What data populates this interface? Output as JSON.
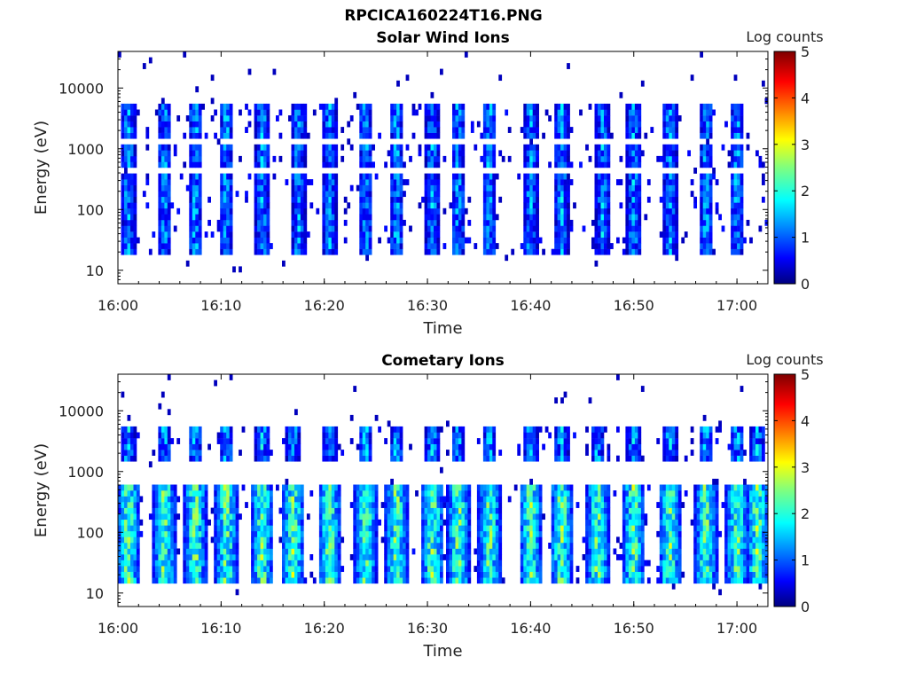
{
  "figure_title": "RPCICA160224T16.PNG",
  "colorbar": {
    "label": "Log counts",
    "ticks": [
      "0",
      "1",
      "2",
      "3",
      "4",
      "5"
    ],
    "range": [
      0,
      5
    ],
    "colormap": "jet"
  },
  "chart_data": [
    {
      "type": "heatmap",
      "title": "Solar Wind Ions",
      "xlabel": "Time",
      "ylabel": "Energy (eV)",
      "x_ticks": [
        "16:00",
        "16:10",
        "16:20",
        "16:30",
        "16:40",
        "16:50",
        "17:00"
      ],
      "y_ticks": [
        "10",
        "100",
        "1000",
        "10000"
      ],
      "y_scale": "log",
      "ylim": [
        6,
        40000
      ],
      "xlim": [
        "16:00",
        "17:03"
      ],
      "z_label": "Log counts",
      "zlim": [
        0,
        5
      ],
      "bursts_high_energy_center_times": [
        "16:01",
        "16:04.5",
        "16:07.5",
        "16:10.5",
        "16:14",
        "16:17.5",
        "16:20.5",
        "16:24",
        "16:27",
        "16:30.5",
        "16:33",
        "16:36",
        "16:40",
        "16:43",
        "16:47",
        "16:50",
        "16:53.5",
        "16:57",
        "17:00"
      ],
      "bands_eV": [
        [
          1500,
          5000
        ],
        [
          500,
          1200
        ],
        [
          20,
          400
        ]
      ],
      "max_log_counts": 3.0
    },
    {
      "type": "heatmap",
      "title": "Cometary Ions",
      "xlabel": "Time",
      "ylabel": "Energy (eV)",
      "x_ticks": [
        "16:00",
        "16:10",
        "16:20",
        "16:30",
        "16:40",
        "16:50",
        "17:00"
      ],
      "y_ticks": [
        "10",
        "100",
        "1000",
        "10000"
      ],
      "y_scale": "log",
      "ylim": [
        6,
        40000
      ],
      "xlim": [
        "16:00",
        "17:03"
      ],
      "z_label": "Log counts",
      "zlim": [
        0,
        5
      ],
      "bursts_center_times": [
        "16:01",
        "16:04.5",
        "16:07.5",
        "16:10.5",
        "16:14",
        "16:17",
        "16:20.5",
        "16:24",
        "16:27",
        "16:30.5",
        "16:33",
        "16:36",
        "16:40",
        "16:43",
        "16:46.5",
        "16:50",
        "16:53.5",
        "16:57",
        "17:00",
        "17:02"
      ],
      "bands_eV": [
        [
          15,
          600
        ],
        [
          1500,
          5000
        ]
      ],
      "max_log_counts": 3.2
    }
  ]
}
